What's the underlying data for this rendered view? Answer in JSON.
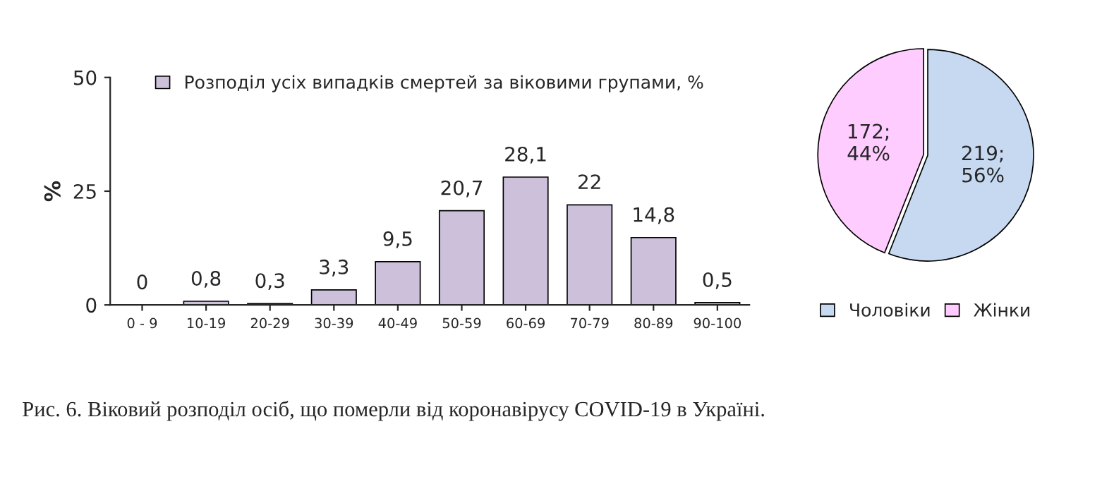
{
  "chart_data": [
    {
      "type": "bar",
      "ylabel": "%",
      "categories": [
        "0 - 9",
        "10-19",
        "20-29",
        "30-39",
        "40-49",
        "50-59",
        "60-69",
        "70-79",
        "80-89",
        "90-100"
      ],
      "series": [
        {
          "name": "Розподіл усіх випадків смертей за віковими групами, %",
          "color": "#ccc0da",
          "values": [
            0,
            0.8,
            0.3,
            3.3,
            9.5,
            20.7,
            28.1,
            22,
            14.8,
            0.5
          ],
          "value_labels": [
            "0",
            "0,8",
            "0,3",
            "3,3",
            "9,5",
            "20,7",
            "28,1",
            "22",
            "14,8",
            "0,5"
          ]
        }
      ],
      "ylim": [
        0,
        50
      ],
      "yticks": [
        0,
        25,
        50
      ],
      "legend": "top",
      "grid": false,
      "annotations": [
        "Рис. 6. Віковий розподіл осіб, що померли від коронавірусу COVID-19 в Україні."
      ]
    },
    {
      "type": "pie",
      "categories": [
        "Чоловіки",
        "Жінки"
      ],
      "values": [
        219,
        172
      ],
      "colors": [
        "#c6d9f1",
        "#ffccff"
      ],
      "value_labels": [
        "219;\n56%",
        "172;\n44%"
      ],
      "legend": "bottom"
    }
  ]
}
